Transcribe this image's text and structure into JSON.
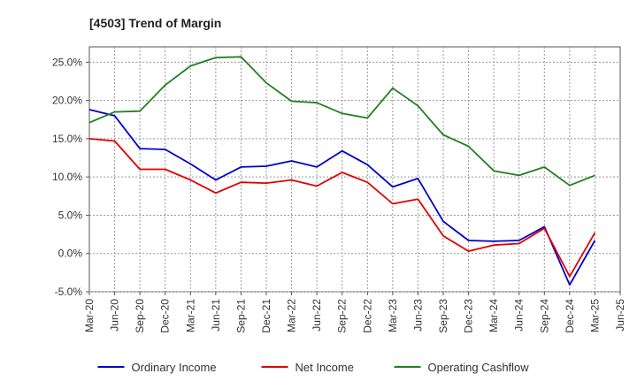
{
  "chart_data": {
    "type": "line",
    "title": "[4503]  Trend of Margin",
    "xlabel": "",
    "ylabel": "",
    "x_ticks": [
      "Mar-20",
      "Jun-20",
      "Sep-20",
      "Dec-20",
      "Mar-21",
      "Jun-21",
      "Sep-21",
      "Dec-21",
      "Mar-22",
      "Jun-22",
      "Sep-22",
      "Dec-22",
      "Mar-23",
      "Jun-23",
      "Sep-23",
      "Dec-23",
      "Mar-24",
      "Jun-24",
      "Sep-24",
      "Dec-24",
      "Mar-25",
      "Jun-25"
    ],
    "categories": [
      "Mar-20",
      "Jun-20",
      "Sep-20",
      "Dec-20",
      "Mar-21",
      "Jun-21",
      "Sep-21",
      "Dec-21",
      "Mar-22",
      "Jun-22",
      "Sep-22",
      "Dec-22",
      "Mar-23",
      "Jun-23",
      "Sep-23",
      "Dec-23",
      "Mar-24",
      "Jun-24",
      "Sep-24",
      "Dec-24",
      "Mar-25"
    ],
    "y_ticks": [
      "-5.0%",
      "0.0%",
      "5.0%",
      "10.0%",
      "15.0%",
      "20.0%",
      "25.0%"
    ],
    "ylim": [
      -5,
      27
    ],
    "grid": true,
    "legend_position": "bottom",
    "series": [
      {
        "name": "Ordinary Income",
        "color": "#0000cc",
        "values": [
          18.8,
          18.0,
          13.7,
          13.6,
          11.7,
          9.6,
          11.3,
          11.4,
          12.1,
          11.3,
          13.4,
          11.6,
          8.7,
          9.8,
          4.2,
          1.7,
          1.6,
          1.7,
          3.5,
          -4.1,
          1.7
        ]
      },
      {
        "name": "Net Income",
        "color": "#e00000",
        "values": [
          15.0,
          14.7,
          11.0,
          11.0,
          9.6,
          7.9,
          9.3,
          9.2,
          9.6,
          8.8,
          10.6,
          9.3,
          6.5,
          7.1,
          2.3,
          0.3,
          1.1,
          1.3,
          3.3,
          -3.0,
          2.7
        ]
      },
      {
        "name": "Operating Cashflow",
        "color": "#208020",
        "values": [
          17.1,
          18.5,
          18.6,
          22.0,
          24.5,
          25.6,
          25.7,
          22.3,
          19.9,
          19.7,
          18.3,
          17.7,
          21.6,
          19.3,
          15.5,
          14.0,
          10.8,
          10.2,
          11.3,
          8.9,
          10.2
        ]
      }
    ]
  }
}
